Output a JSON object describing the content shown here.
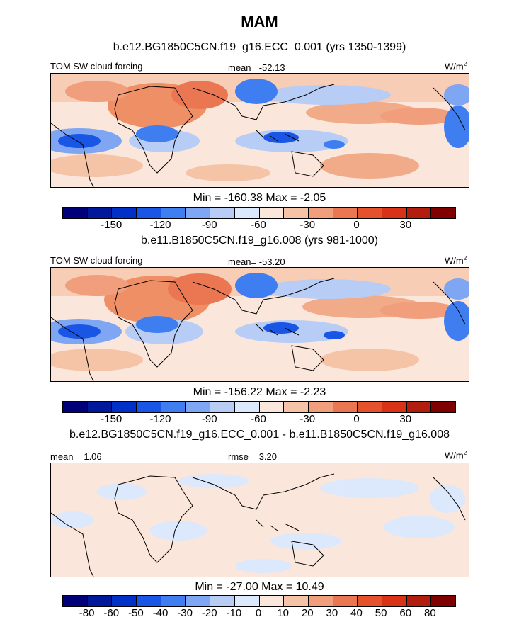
{
  "figure": {
    "title": "MAM",
    "panels": [
      {
        "subtitle": "b.e12.BG1850C5CN.f19_g16.ECC_0.001 (yrs 1350-1399)",
        "left_label": "TOM SW cloud forcing",
        "center_label": "mean= -52.13",
        "units": "W/m",
        "units_exp": "2",
        "minmax": "Min = -160.38 Max =  -2.05",
        "ticks": [
          "-150",
          "-120",
          "-90",
          "-60",
          "-30",
          "0",
          "30"
        ]
      },
      {
        "subtitle": "b.e11.B1850C5CN.f19_g16.008 (yrs 981-1000)",
        "left_label": "TOM SW cloud forcing",
        "center_label": "mean= -53.20",
        "units": "W/m",
        "units_exp": "2",
        "minmax": "Min = -156.22 Max =  -2.23",
        "ticks": [
          "-150",
          "-120",
          "-90",
          "-60",
          "-30",
          "0",
          "30"
        ]
      },
      {
        "subtitle": "b.e12.BG1850C5CN.f19_g16.ECC_0.001 - b.e11.B1850C5CN.f19_g16.008",
        "left_label": "mean =   1.06",
        "center_label": "rmse =   3.20",
        "units": "W/m",
        "units_exp": "2",
        "minmax": "Min = -27.00 Max =  10.49",
        "ticks": [
          "-80",
          "-60",
          "-50",
          "-40",
          "-30",
          "-20",
          "-10",
          "0",
          "10",
          "20",
          "30",
          "40",
          "50",
          "60",
          "80"
        ]
      }
    ],
    "colors": {
      "bar16": [
        "#00007a",
        "#00189a",
        "#0030c8",
        "#1a56e6",
        "#3f7ef0",
        "#7ea6f2",
        "#b7cdf6",
        "#dce8fb",
        "#fbe6dc",
        "#f5c3a6",
        "#f09e7c",
        "#ea7751",
        "#e4512b",
        "#d93317",
        "#b21d0d",
        "#800000"
      ]
    }
  }
}
